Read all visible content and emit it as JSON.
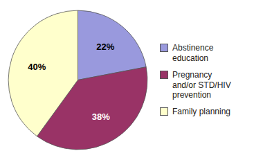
{
  "chart_data": {
    "type": "pie",
    "categories": [
      "Abstinence\neducation",
      "Pregnancy\nand/or STD/HIV\nprevention",
      "Family planning"
    ],
    "values": [
      22,
      38,
      40
    ],
    "value_labels": [
      "22%",
      "38%",
      "40%"
    ],
    "colors": [
      "#9999dd",
      "#993366",
      "#ffffcc"
    ],
    "data_labels": true,
    "legend": "right"
  }
}
